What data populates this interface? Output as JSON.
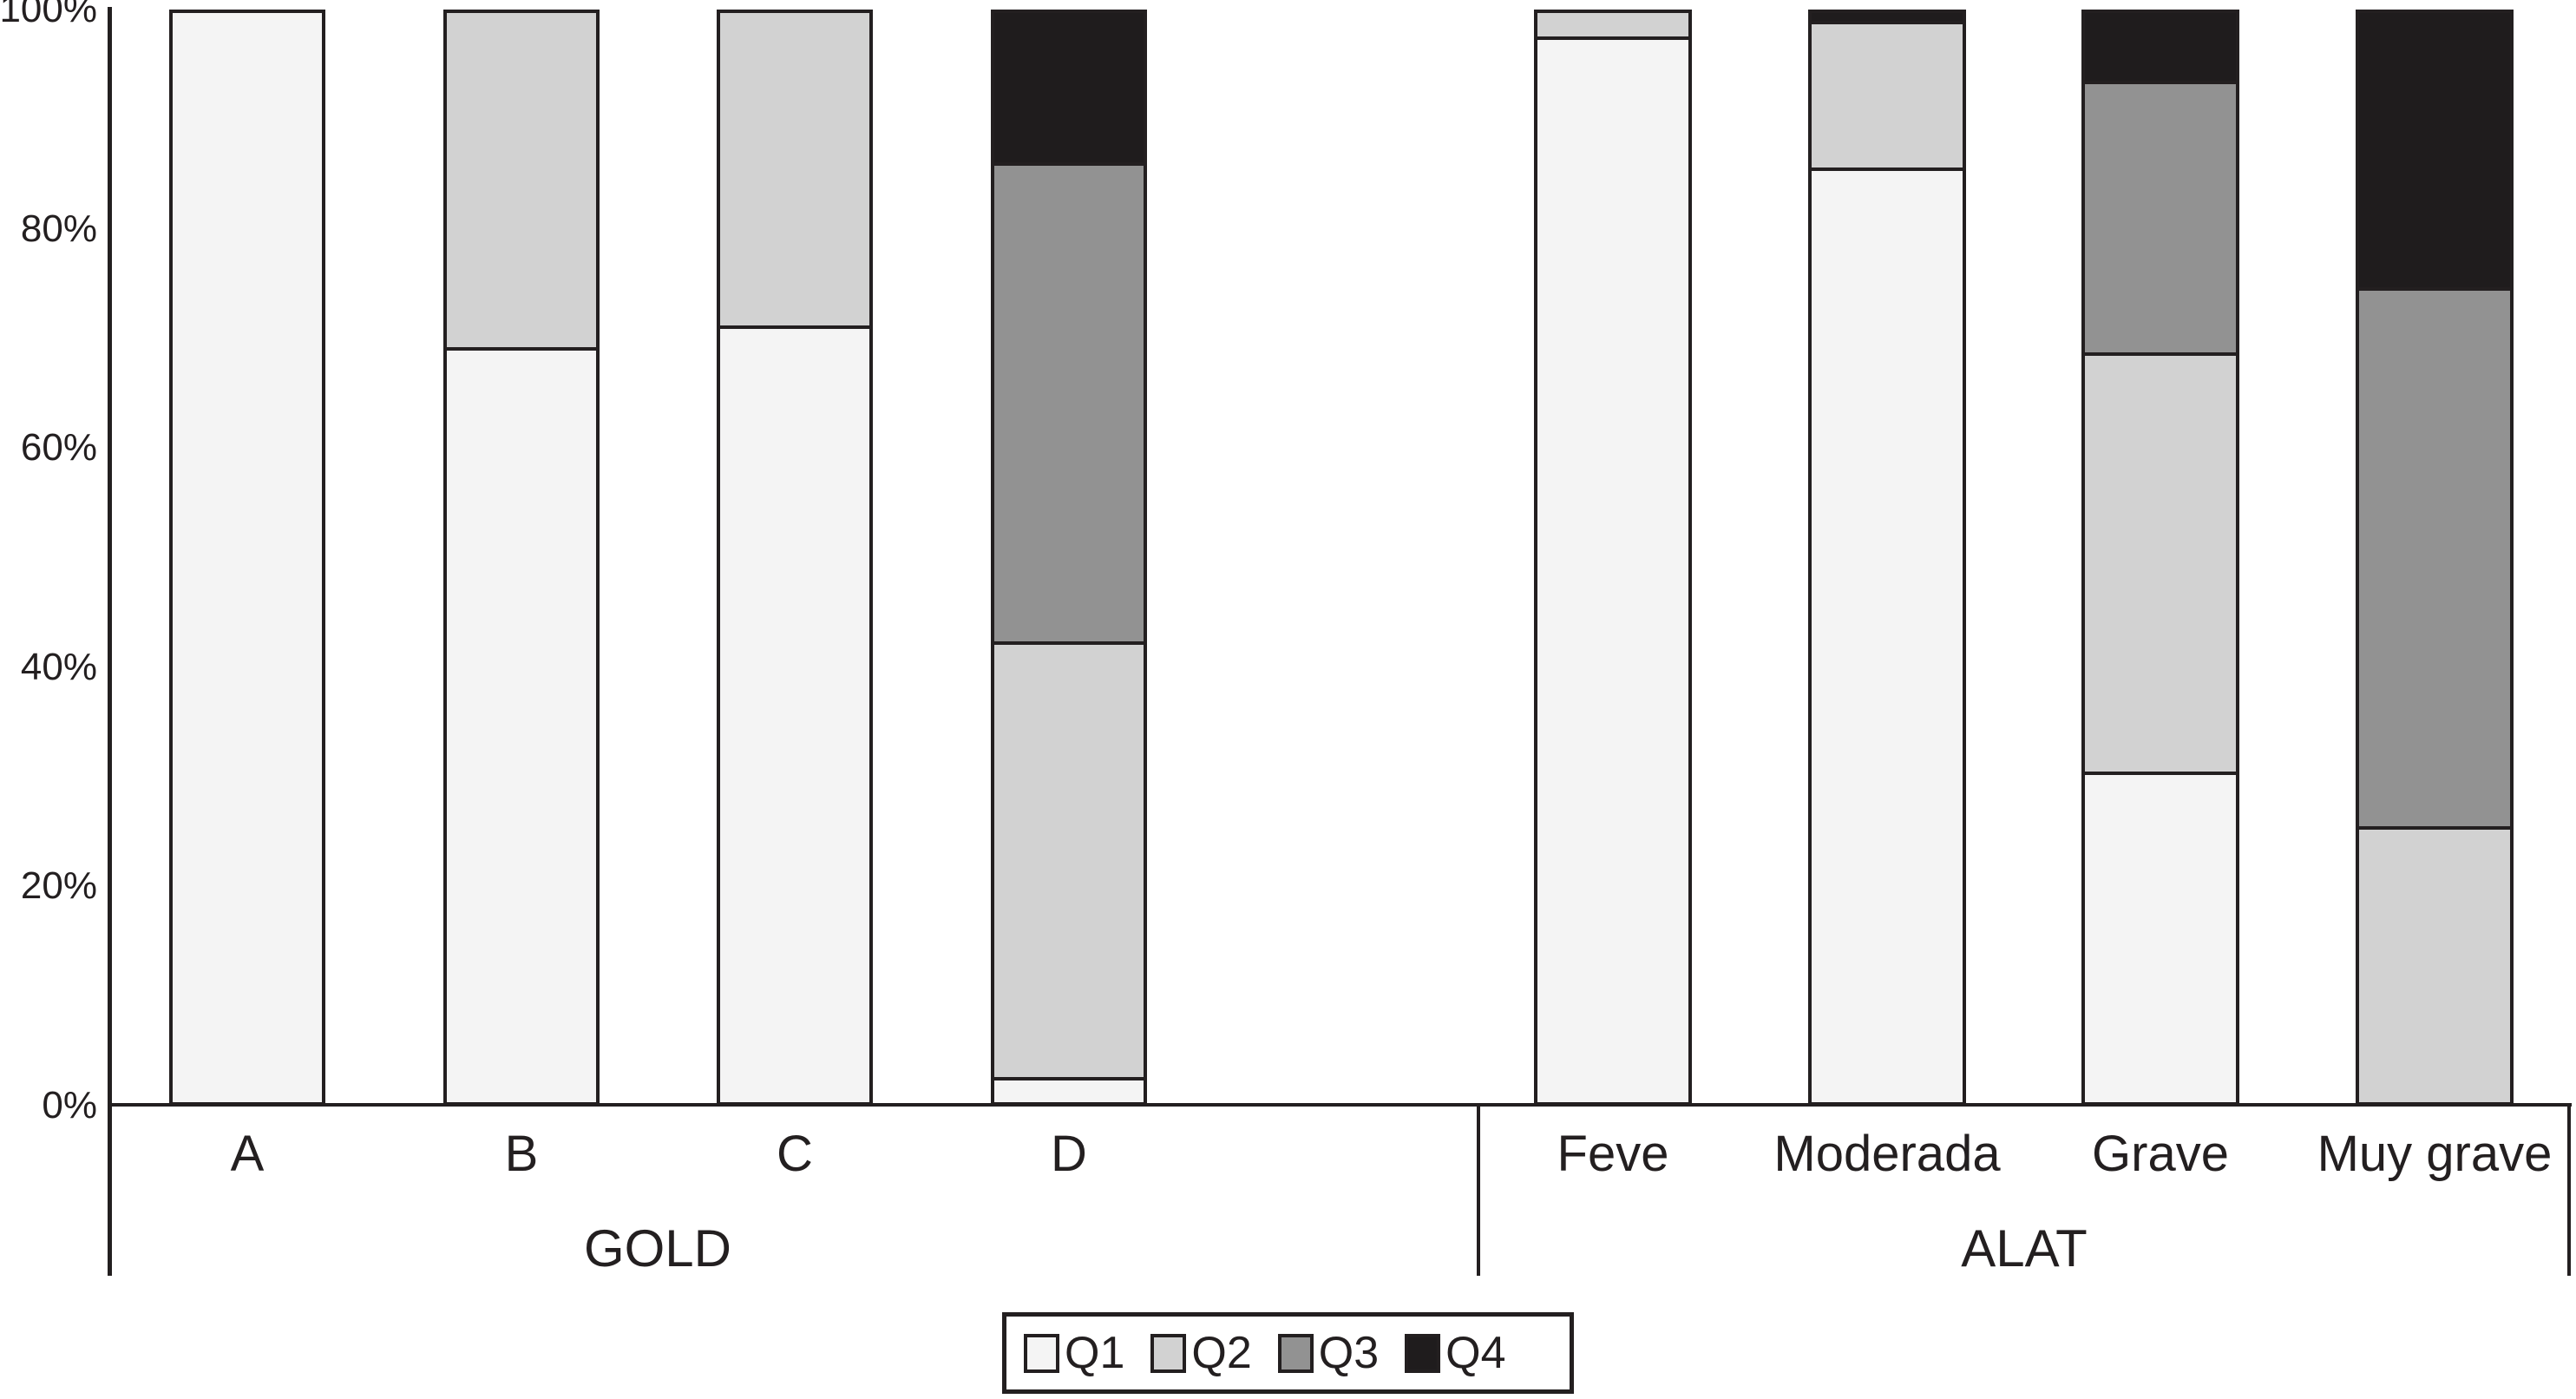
{
  "chart_data": {
    "type": "bar",
    "variant": "stacked-100-percent",
    "orientation": "vertical",
    "grid": false,
    "unit": "%",
    "groups": [
      {
        "label": "GOLD",
        "categories": [
          "A",
          "B",
          "C",
          "D"
        ]
      },
      {
        "label": "ALAT",
        "categories": [
          "Feve",
          "Moderada",
          "Grave",
          "Muy grave"
        ]
      }
    ],
    "categories": [
      "A",
      "B",
      "C",
      "D",
      "Feve",
      "Moderada",
      "Grave",
      "Muy grave"
    ],
    "series": [
      {
        "name": "Q1",
        "color": "#f4f4f4",
        "values": [
          100,
          69,
          71,
          2,
          97.5,
          85.5,
          30,
          0
        ]
      },
      {
        "name": "Q2",
        "color": "#d2d2d2",
        "values": [
          0,
          31,
          29,
          40,
          2.5,
          13.5,
          38.5,
          25
        ]
      },
      {
        "name": "Q3",
        "color": "#929292",
        "values": [
          0,
          0,
          0,
          44,
          0,
          0,
          25,
          49.5
        ]
      },
      {
        "name": "Q4",
        "color": "#1f1c1d",
        "values": [
          0,
          0,
          0,
          14,
          0,
          1,
          6.5,
          25.5
        ]
      }
    ],
    "y_axis": {
      "min": 0,
      "max": 100,
      "ticks": [
        {
          "value": 0,
          "label": "0%"
        },
        {
          "value": 20,
          "label": "20%"
        },
        {
          "value": 40,
          "label": "40%"
        },
        {
          "value": 60,
          "label": "60%"
        },
        {
          "value": 80,
          "label": "80%"
        },
        {
          "value": 100,
          "label": "100%"
        }
      ]
    },
    "legend": {
      "position": "bottom-center",
      "entries": [
        "Q1",
        "Q2",
        "Q3",
        "Q4"
      ]
    },
    "line_color": "#231f20",
    "background_color": "#ffffff",
    "title": "",
    "xlabel": "",
    "ylabel": ""
  }
}
